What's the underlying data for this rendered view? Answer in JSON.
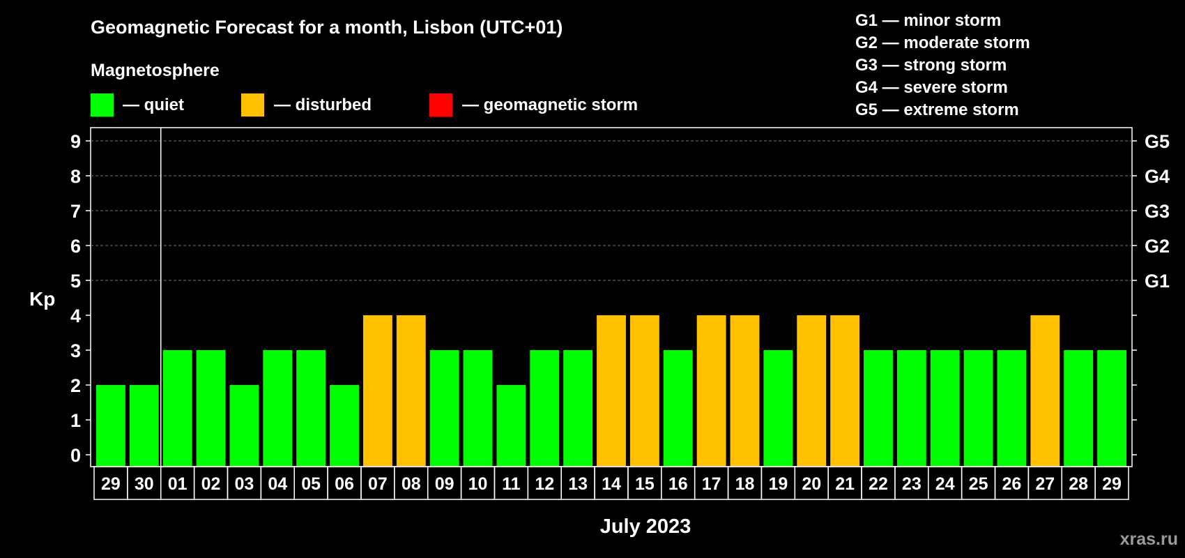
{
  "chart_data": {
    "type": "bar",
    "title": "Geomagnetic Forecast for a month, Lisbon (UTC+01)",
    "legend_title": "Magnetosphere",
    "legend": [
      {
        "label": "— quiet",
        "color": "#00ff00"
      },
      {
        "label": "— disturbed",
        "color": "#ffc000"
      },
      {
        "label": "— geomagnetic storm",
        "color": "#ff0000"
      }
    ],
    "storm_scale": [
      "G1 — minor storm",
      "G2 — moderate storm",
      "G3 — strong storm",
      "G4 — severe storm",
      "G5 — extreme storm"
    ],
    "ylabel": "Kp",
    "xlabel": "July 2023",
    "ylim": [
      0,
      9
    ],
    "yticks": [
      "0",
      "1",
      "2",
      "3",
      "4",
      "5",
      "6",
      "7",
      "8",
      "9"
    ],
    "right_labels": [
      {
        "value": 5,
        "label": "G1"
      },
      {
        "value": 6,
        "label": "G2"
      },
      {
        "value": 7,
        "label": "G3"
      },
      {
        "value": 8,
        "label": "G4"
      },
      {
        "value": 9,
        "label": "G5"
      }
    ],
    "categories": [
      "29",
      "30",
      "01",
      "02",
      "03",
      "04",
      "05",
      "06",
      "07",
      "08",
      "09",
      "10",
      "11",
      "12",
      "13",
      "14",
      "15",
      "16",
      "17",
      "18",
      "19",
      "20",
      "21",
      "22",
      "23",
      "24",
      "25",
      "26",
      "27",
      "28",
      "29"
    ],
    "values": [
      2,
      2,
      3,
      3,
      2,
      3,
      3,
      2,
      4,
      4,
      3,
      3,
      2,
      3,
      3,
      4,
      4,
      3,
      4,
      4,
      3,
      4,
      4,
      3,
      3,
      3,
      3,
      3,
      4,
      3,
      3
    ],
    "month_divider_after_index": 1,
    "grid": "dashed at 5-9",
    "colors": {
      "quiet": "#00ff00",
      "disturbed": "#ffc000",
      "storm": "#ff0000"
    }
  },
  "watermark": "xras.ru"
}
